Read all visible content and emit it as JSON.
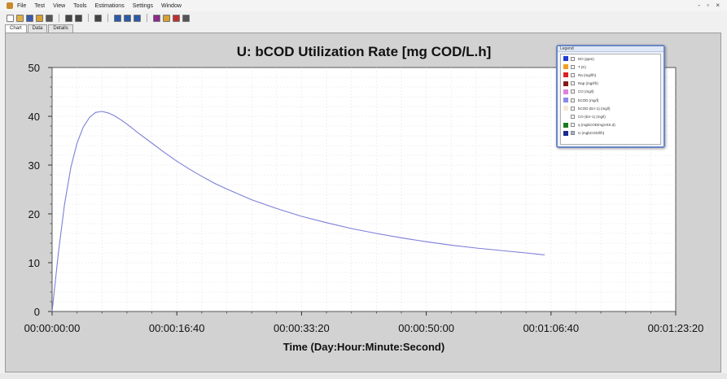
{
  "menu": [
    "File",
    "Test",
    "View",
    "Tools",
    "Estimations",
    "Settings",
    "Window"
  ],
  "window_controls": "- ▫ ×",
  "tabs": [
    {
      "label": "Chart",
      "active": true
    },
    {
      "label": "Data",
      "active": false
    },
    {
      "label": "Details",
      "active": false
    }
  ],
  "toolbar_icons": [
    {
      "name": "new-file-icon",
      "color": "#ffffff"
    },
    {
      "name": "open-folder-icon",
      "color": "#e0b040"
    },
    {
      "name": "save-icon",
      "color": "#3a5ba8"
    },
    {
      "name": "export-icon",
      "color": "#d8a030"
    },
    {
      "name": "settings-icon",
      "color": "#555555"
    },
    {
      "name": "play-icon",
      "color": "#444444"
    },
    {
      "name": "stop-icon",
      "color": "#444444"
    },
    {
      "name": "zoom-icon",
      "color": "#444444"
    },
    {
      "name": "chart-icon-1",
      "color": "#2a5aa8"
    },
    {
      "name": "chart-icon-2",
      "color": "#2a5aa8"
    },
    {
      "name": "chart-icon-3",
      "color": "#2a5aa8"
    },
    {
      "name": "grid-icon",
      "color": "#8a2a8a"
    },
    {
      "name": "copy-icon",
      "color": "#d8a030"
    },
    {
      "name": "bar-icon",
      "color": "#c03030"
    },
    {
      "name": "print-icon",
      "color": "#555555"
    }
  ],
  "legend": {
    "title": "Legend",
    "items": [
      {
        "label": "DO (ppm)",
        "color": "#1f3bd6",
        "checked": false
      },
      {
        "label": "T (K)",
        "color": "#f0a020",
        "checked": false
      },
      {
        "label": "Ra (mg/l/h)",
        "color": "#e02020",
        "checked": false
      },
      {
        "label": "Rap (mg/l/h)",
        "color": "#8a1818",
        "checked": false
      },
      {
        "label": "CO (mg/l)",
        "color": "#e080e0",
        "checked": false
      },
      {
        "label": "bCOD (mg/l)",
        "color": "#8a8ae8",
        "checked": false
      },
      {
        "label": "bCOD (Err-1) (mg/l)",
        "color": "#f5ead8",
        "checked": false
      },
      {
        "label": "CO (Err-1) (mg/l)",
        "color": "#ffffff",
        "checked": false
      },
      {
        "label": "q (mgbCOD/mgVSS.d)",
        "color": "#1a7a1a",
        "checked": false
      },
      {
        "label": "U (mgbCOD/l/h)",
        "color": "#1a2a8a",
        "checked": true
      }
    ]
  },
  "chart_data": {
    "type": "line",
    "title": "U: bCOD Utilization Rate [mg COD/L.h]",
    "xlabel": "Time (Day:Hour:Minute:Second)",
    "ylabel": "",
    "xlim": [
      0,
      5000
    ],
    "ylim": [
      0,
      50
    ],
    "x_ticks": [
      {
        "value": 0,
        "label": "00:00:00:00"
      },
      {
        "value": 1000,
        "label": "00:00:16:40"
      },
      {
        "value": 2000,
        "label": "00:00:33:20"
      },
      {
        "value": 3000,
        "label": "00:00:50:00"
      },
      {
        "value": 4000,
        "label": "00:01:06:40"
      },
      {
        "value": 5000,
        "label": "00:01:23:20"
      }
    ],
    "y_ticks": [
      0,
      10,
      20,
      30,
      40,
      50
    ],
    "grid": true,
    "legend_position": "top-right",
    "series": [
      {
        "color": "#7b7fd8",
        "x": [
          0,
          50,
          100,
          150,
          200,
          250,
          300,
          350,
          400,
          450,
          500,
          550,
          600,
          700,
          800,
          900,
          1000,
          1100,
          1200,
          1300,
          1400,
          1500,
          1600,
          1800,
          2000,
          2200,
          2400,
          2600,
          2800,
          3000,
          3200,
          3400,
          3600,
          3800,
          3950
        ],
        "y": [
          0,
          12,
          22,
          29.5,
          34.5,
          37.8,
          39.8,
          40.8,
          41,
          40.7,
          40.1,
          39.3,
          38.4,
          36.4,
          34.5,
          32.6,
          30.8,
          29.2,
          27.7,
          26.3,
          25.1,
          24,
          22.9,
          21.1,
          19.5,
          18.2,
          17,
          16,
          15.1,
          14.3,
          13.6,
          13,
          12.5,
          12,
          11.6
        ]
      }
    ]
  }
}
